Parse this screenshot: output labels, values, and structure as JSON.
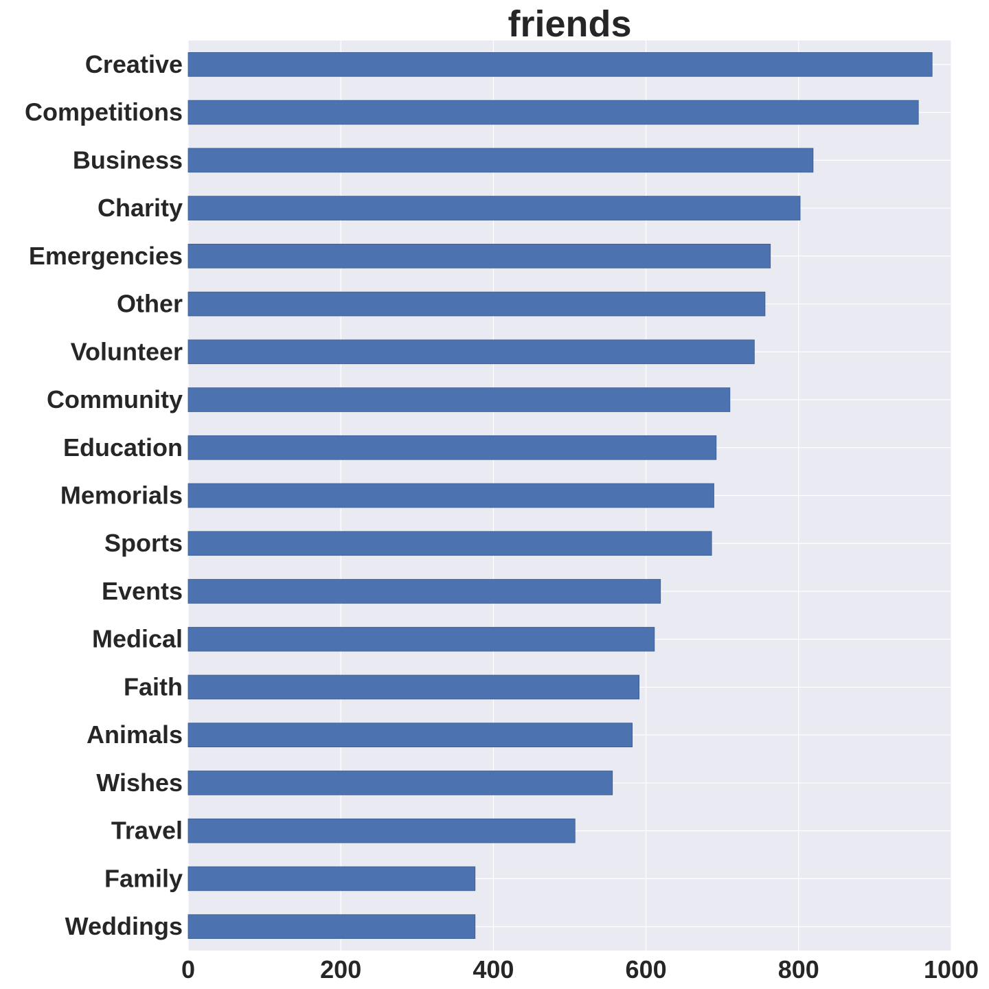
{
  "chart_data": {
    "type": "bar",
    "orientation": "horizontal",
    "title": "friends",
    "xlabel": "",
    "ylabel": "",
    "categories": [
      "Creative",
      "Competitions",
      "Business",
      "Charity",
      "Emergencies",
      "Other",
      "Volunteer",
      "Community",
      "Education",
      "Memorials",
      "Sports",
      "Events",
      "Medical",
      "Faith",
      "Animals",
      "Wishes",
      "Travel",
      "Family",
      "Weddings"
    ],
    "values": [
      975,
      957,
      819,
      802,
      763,
      756,
      742,
      710,
      692,
      689,
      686,
      619,
      611,
      591,
      582,
      556,
      507,
      376,
      376
    ],
    "xlim": [
      0,
      1000
    ],
    "xticks": [
      "0",
      "200",
      "400",
      "600",
      "800",
      "1000"
    ],
    "grid": true,
    "legend": "none",
    "colors": {
      "bar": "#4c72b0",
      "background": "#eaeaf2",
      "grid": "#ffffff",
      "text": "#262626"
    }
  }
}
